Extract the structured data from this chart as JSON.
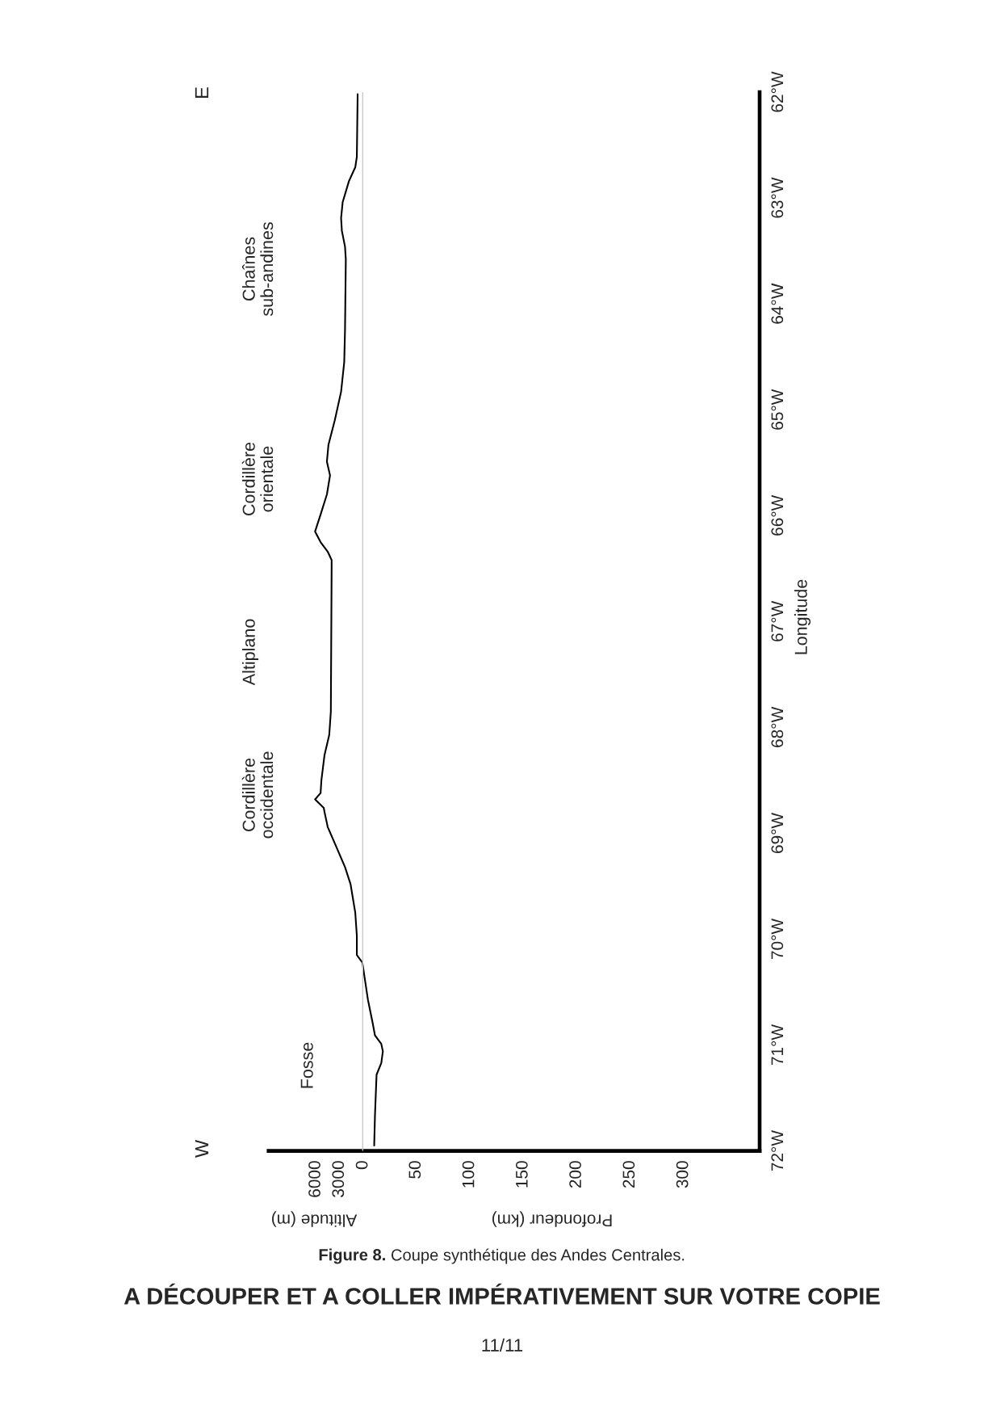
{
  "chart_data": {
    "type": "line",
    "title": "Figure 8. Coupe synthétique des Andes Centrales.",
    "xlabel": "Altitude (m)",
    "x2label": "Profondeur (km)",
    "ylabel": "Longitude",
    "series": [
      {
        "color": "#000000",
        "x": [
          -1400,
          -1500,
          -1700,
          -2300,
          -2500,
          -2300,
          -1500,
          -1200,
          -600,
          100,
          500,
          800,
          800,
          1000,
          1600,
          2300,
          3400,
          4500,
          4900,
          5000,
          6100,
          5400,
          5300,
          4900,
          4300,
          4100,
          4000,
          4000,
          4500,
          5400,
          6100,
          5400,
          4600,
          4200,
          4600,
          4400,
          3600,
          2800,
          2400,
          2300,
          2200,
          2300,
          2700,
          2800,
          2600,
          1800,
          1000,
          800,
          700
        ],
        "values": [
          -71.95,
          -71.66,
          -71.28,
          -71.17,
          -71.06,
          -70.99,
          -70.91,
          -70.79,
          -70.57,
          -70.22,
          -70.18,
          -70.15,
          -69.97,
          -69.75,
          -69.48,
          -69.32,
          -69.13,
          -68.94,
          -68.8,
          -68.76,
          -68.68,
          -68.62,
          -68.5,
          -68.26,
          -68.07,
          -67.85,
          -66.5,
          -66.42,
          -66.34,
          -66.25,
          -66.15,
          -65.99,
          -65.8,
          -65.62,
          -65.49,
          -65.33,
          -65.1,
          -64.83,
          -64.55,
          -64.24,
          -63.58,
          -63.46,
          -63.31,
          -63.19,
          -63.04,
          -62.84,
          -62.71,
          -62.61,
          -62.02
        ]
      }
    ],
    "xlim": [
      12000,
      -50300
    ],
    "xticks": [
      0,
      3000,
      6000
    ],
    "x2lim": [
      -88,
      371
    ],
    "x2ticks": [
      50,
      100,
      150,
      200,
      250,
      300
    ],
    "ylim": [
      -72,
      -62
    ],
    "yticks": [
      {
        "value": -72,
        "label": "72°W"
      },
      {
        "value": -71,
        "label": "71°W"
      },
      {
        "value": -70,
        "label": "70°W"
      },
      {
        "value": -69,
        "label": "69°W"
      },
      {
        "value": -68,
        "label": "68°W"
      },
      {
        "value": -67,
        "label": "67°W"
      },
      {
        "value": -66,
        "label": "66°W"
      },
      {
        "value": -65,
        "label": "65°W"
      },
      {
        "value": -64,
        "label": "64°W"
      },
      {
        "value": -63,
        "label": "63°W"
      },
      {
        "value": -62,
        "label": "62°W"
      }
    ],
    "ref_lines": [
      {
        "axis": "x2",
        "value": 0,
        "color": "#c8c8c8"
      }
    ],
    "annotations": [
      "W",
      "E",
      "Fosse",
      "Cordillère\noccidentale",
      "Altiplano",
      "Cordillère\norientale",
      "Chaînes\nsub-andines",
      "A DÉCOUPER ET A COLLER IMPÉRATIVEMENT SUR VOTRE COPIE",
      "11/11"
    ],
    "marker": "none",
    "line_style": "solid",
    "grid": false
  }
}
